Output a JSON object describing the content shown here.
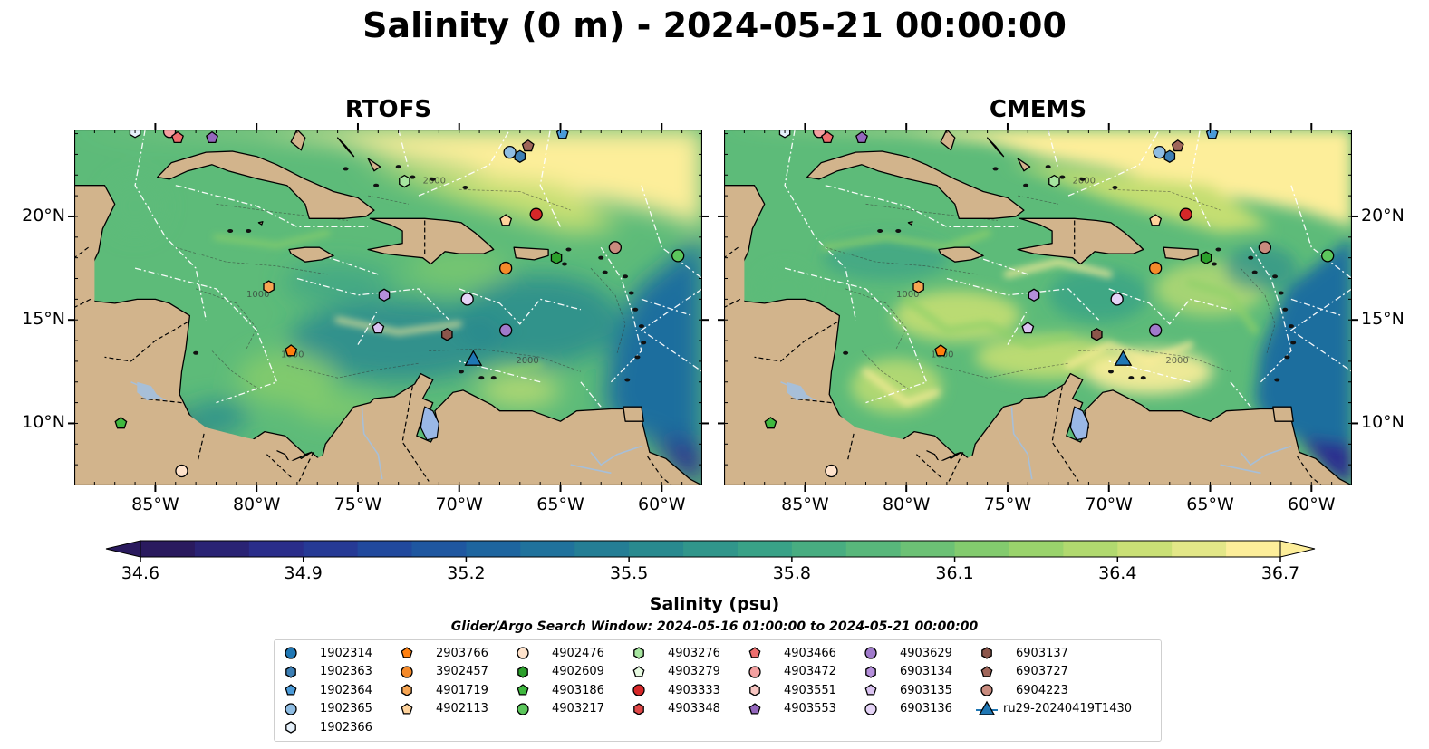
{
  "title": "Salinity (0 m) - 2024-05-21 00:00:00",
  "panels": [
    {
      "title": "RTOFS",
      "style": "rtofs"
    },
    {
      "title": "CMEMS",
      "style": "cmems"
    }
  ],
  "map": {
    "lon_range": [
      -89,
      -58
    ],
    "lat_range": [
      7,
      24.2
    ],
    "lon_ticks": [
      {
        "value": -85,
        "label": "85°W"
      },
      {
        "value": -80,
        "label": "80°W"
      },
      {
        "value": -75,
        "label": "75°W"
      },
      {
        "value": -70,
        "label": "70°W"
      },
      {
        "value": -65,
        "label": "65°W"
      },
      {
        "value": -60,
        "label": "60°W"
      }
    ],
    "lat_ticks": [
      {
        "value": 20,
        "label": "20°N"
      },
      {
        "value": 15,
        "label": "15°N"
      },
      {
        "value": 10,
        "label": "10°N"
      }
    ],
    "contour_labels": [
      "1000",
      "1000",
      "2000",
      "2000"
    ],
    "land_color": "#d2b48c",
    "water_body_color": "#9ab8e6",
    "river_color": "#a7bfd8"
  },
  "colorbar": {
    "label": "Salinity (psu)",
    "min": 34.6,
    "max": 36.7,
    "ticks": [
      "34.6",
      "34.9",
      "35.2",
      "35.5",
      "35.8",
      "36.1",
      "36.4",
      "36.7"
    ],
    "colormap": [
      "#2a1a5e",
      "#2a2f8f",
      "#1f4fa0",
      "#1e6e9e",
      "#28898f",
      "#3aa387",
      "#5dbb79",
      "#8fd06a",
      "#c4de72",
      "#fdee9a"
    ]
  },
  "legend": {
    "title": "Glider/Argo Search Window: 2024-05-16 01:00:00 to 2024-05-21 00:00:00",
    "items": [
      {
        "id": "1902314",
        "color": "#1f77b4",
        "marker": "circle"
      },
      {
        "id": "1902363",
        "color": "#3c7fb5",
        "marker": "hexagon"
      },
      {
        "id": "1902364",
        "color": "#4a9ad8",
        "marker": "pentagon"
      },
      {
        "id": "1902365",
        "color": "#8fbde3",
        "marker": "circle"
      },
      {
        "id": "1902366",
        "color": "#e6f1fb",
        "marker": "hexagon"
      },
      {
        "id": "2903766",
        "color": "#ff7f0e",
        "marker": "pentagon"
      },
      {
        "id": "3902457",
        "color": "#f58a2a",
        "marker": "circle"
      },
      {
        "id": "4901719",
        "color": "#f7a552",
        "marker": "hexagon"
      },
      {
        "id": "4902113",
        "color": "#ffd39c",
        "marker": "pentagon"
      },
      {
        "id": "4902476",
        "color": "#ffe3cc",
        "marker": "circle"
      },
      {
        "id": "4902609",
        "color": "#2ca02c",
        "marker": "hexagon"
      },
      {
        "id": "4903186",
        "color": "#3fb93f",
        "marker": "pentagon"
      },
      {
        "id": "4903217",
        "color": "#5cc75c",
        "marker": "circle"
      },
      {
        "id": "4903276",
        "color": "#a7e6a0",
        "marker": "hexagon"
      },
      {
        "id": "4903279",
        "color": "#e8fbe2",
        "marker": "pentagon"
      },
      {
        "id": "4903333",
        "color": "#d62728",
        "marker": "circle"
      },
      {
        "id": "4903348",
        "color": "#e04848",
        "marker": "hexagon"
      },
      {
        "id": "4903466",
        "color": "#ee6e6e",
        "marker": "pentagon"
      },
      {
        "id": "4903472",
        "color": "#f4a0a0",
        "marker": "circle"
      },
      {
        "id": "4903551",
        "color": "#f8c6c2",
        "marker": "hexagon"
      },
      {
        "id": "4903553",
        "color": "#9467bd",
        "marker": "pentagon"
      },
      {
        "id": "4903629",
        "color": "#a07acb",
        "marker": "circle"
      },
      {
        "id": "6903134",
        "color": "#b58fdb",
        "marker": "hexagon"
      },
      {
        "id": "6903135",
        "color": "#d9c2f0",
        "marker": "pentagon"
      },
      {
        "id": "6903136",
        "color": "#e5d4f7",
        "marker": "circle"
      },
      {
        "id": "6903137",
        "color": "#8c564b",
        "marker": "hexagon"
      },
      {
        "id": "6903727",
        "color": "#a0665a",
        "marker": "pentagon"
      },
      {
        "id": "6904223",
        "color": "#c98b7e",
        "marker": "circle"
      },
      {
        "id": "ru29-20240419T1430",
        "color": "#1f77b4",
        "marker": "glider"
      }
    ]
  },
  "floats": [
    {
      "id": "4903472",
      "lon": -84.3,
      "lat": 24.1
    },
    {
      "id": "4903466",
      "lon": -83.9,
      "lat": 23.8
    },
    {
      "id": "4903553",
      "lon": -82.2,
      "lat": 23.8
    },
    {
      "id": "1902366",
      "lon": -86.0,
      "lat": 24.1
    },
    {
      "id": "1902364",
      "lon": -64.9,
      "lat": 24.0
    },
    {
      "id": "6903727",
      "lon": -66.6,
      "lat": 23.4
    },
    {
      "id": "1902363",
      "lon": -67.0,
      "lat": 22.9
    },
    {
      "id": "1902365",
      "lon": -67.5,
      "lat": 23.1
    },
    {
      "id": "4903276",
      "lon": -72.7,
      "lat": 21.7
    },
    {
      "id": "4902113",
      "lon": -67.7,
      "lat": 19.8
    },
    {
      "id": "4903333",
      "lon": -66.2,
      "lat": 20.1
    },
    {
      "id": "6904223",
      "lon": -62.3,
      "lat": 18.5
    },
    {
      "id": "4903217",
      "lon": -59.2,
      "lat": 18.1
    },
    {
      "id": "4902609",
      "lon": -65.2,
      "lat": 18.0
    },
    {
      "id": "3902457",
      "lon": -67.7,
      "lat": 17.5
    },
    {
      "id": "4901719",
      "lon": -79.4,
      "lat": 16.6
    },
    {
      "id": "6903134",
      "lon": -73.7,
      "lat": 16.2
    },
    {
      "id": "6903136",
      "lon": -69.6,
      "lat": 16.0
    },
    {
      "id": "6903135",
      "lon": -74.0,
      "lat": 14.6
    },
    {
      "id": "6903137",
      "lon": -70.6,
      "lat": 14.3
    },
    {
      "id": "4903629",
      "lon": -67.7,
      "lat": 14.5
    },
    {
      "id": "2903766",
      "lon": -78.3,
      "lat": 13.5
    },
    {
      "id": "ru29-20240419T1430",
      "lon": -69.3,
      "lat": 13.1
    },
    {
      "id": "4903186",
      "lon": -86.7,
      "lat": 10.0
    },
    {
      "id": "4902476",
      "lon": -83.7,
      "lat": 7.7
    }
  ]
}
